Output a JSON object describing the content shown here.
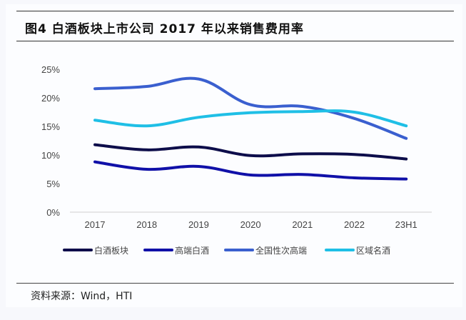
{
  "figure": {
    "title": "图4   白酒板块上市公司 2017 年以来销售费用率",
    "source": "资料来源：Wind，HTI"
  },
  "chart_data": {
    "type": "line",
    "title": "白酒板块上市公司 2017 年以来销售费用率",
    "xlabel": "",
    "ylabel": "",
    "categories": [
      "2017",
      "2018",
      "2019",
      "2020",
      "2021",
      "2022",
      "23H1"
    ],
    "yticks": [
      "0%",
      "5%",
      "10%",
      "15%",
      "20%",
      "25%"
    ],
    "ylim": [
      0,
      25
    ],
    "grid": false,
    "legend_position": "bottom",
    "smooth": true,
    "series": [
      {
        "name": "白酒板块",
        "color": "#0d0d4a",
        "values": [
          11.8,
          10.9,
          11.4,
          9.9,
          10.2,
          10.1,
          9.3
        ]
      },
      {
        "name": "高端白酒",
        "color": "#1010a8",
        "values": [
          8.8,
          7.5,
          8.0,
          6.5,
          6.6,
          6.0,
          5.8
        ]
      },
      {
        "name": "全国性次高端",
        "color": "#3a5fcf",
        "values": [
          21.6,
          22.0,
          23.3,
          18.8,
          18.5,
          16.4,
          12.9
        ]
      },
      {
        "name": "区域名酒",
        "color": "#1fbfe6",
        "values": [
          16.1,
          15.1,
          16.6,
          17.4,
          17.6,
          17.5,
          15.1
        ]
      }
    ]
  }
}
